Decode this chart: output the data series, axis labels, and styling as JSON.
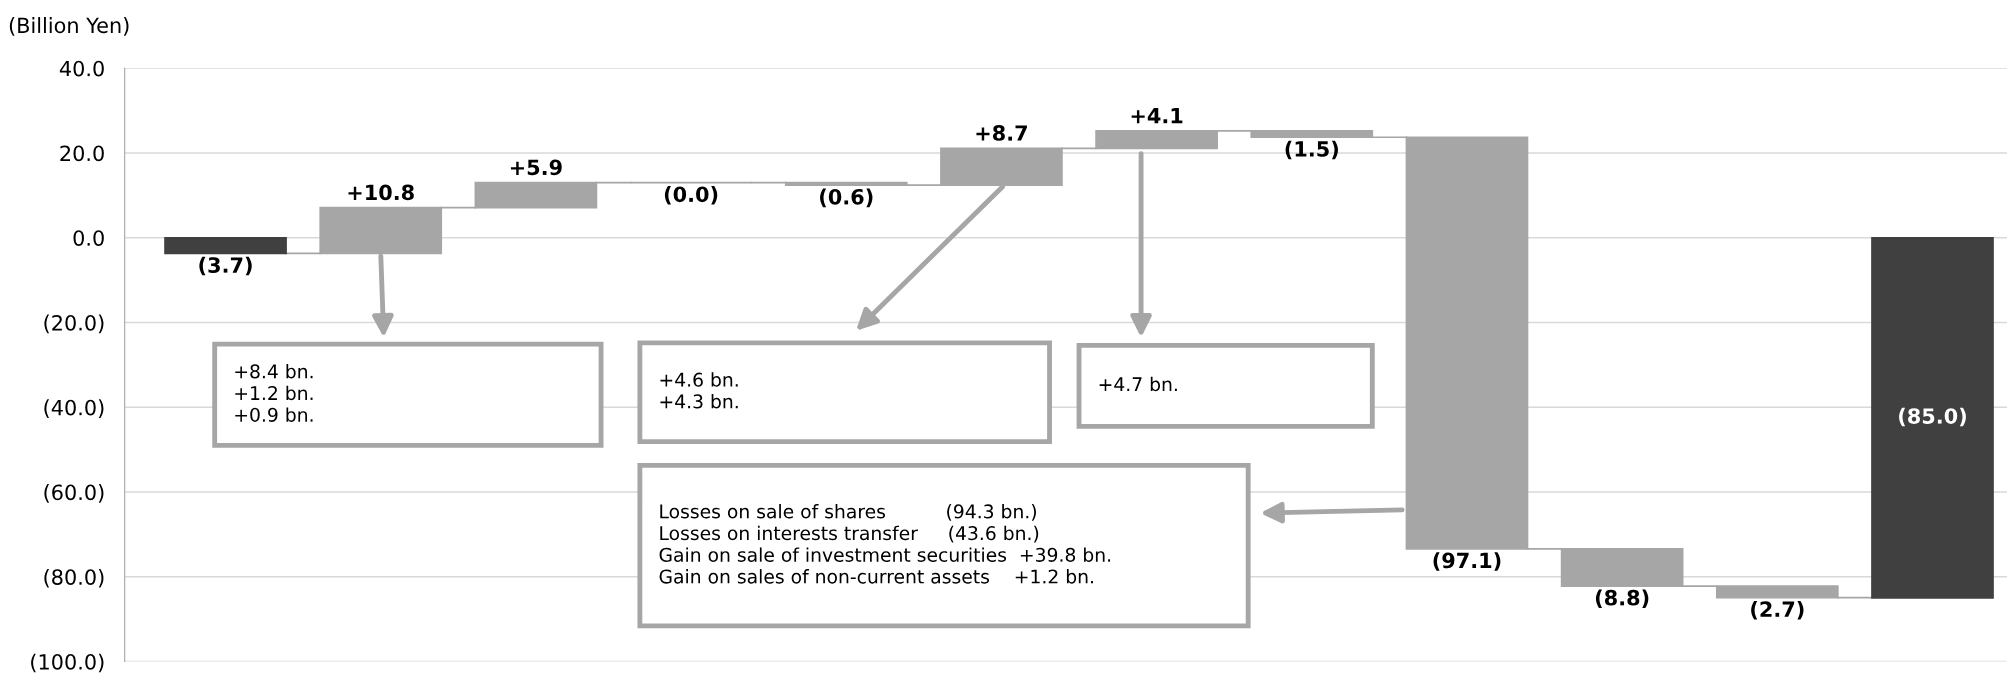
{
  "chart_data": {
    "type": "bar",
    "ylabel": "(Billion Yen)",
    "categories": [
      null,
      null,
      null,
      null,
      null,
      null,
      null,
      null,
      null,
      null,
      null,
      null
    ],
    "values": [
      -3.7,
      10.8,
      5.9,
      0.0,
      -0.6,
      8.7,
      4.1,
      -1.5,
      -97.1,
      -8.8,
      -2.7,
      -85.0
    ],
    "base": [
      0,
      -3.7,
      7.1,
      13.0,
      13.0,
      12.4,
      21.1,
      25.2,
      23.7,
      -73.4,
      -82.2,
      0
    ],
    "colors": [
      "#404040",
      "#a6a6a6",
      "#a6a6a6",
      "#a6a6a6",
      "#a6a6a6",
      "#a6a6a6",
      "#a6a6a6",
      "#a6a6a6",
      "#a6a6a6",
      "#a6a6a6",
      "#a6a6a6",
      "#404040"
    ],
    "value_labels": [
      "(3.7)",
      "+10.8",
      "+5.9",
      "(0.0)",
      "(0.6)",
      "+8.7",
      "+4.1",
      "(1.5)",
      "(97.1)",
      "(8.8)",
      "(2.7)",
      "(85.0)"
    ],
    "ylim": [
      -100,
      40
    ],
    "yticks": [
      {
        "value": 40,
        "label": "40.0"
      },
      {
        "value": 20,
        "label": "20.0"
      },
      {
        "value": 0,
        "label": "0.0"
      },
      {
        "value": -20,
        "label": "(20.0)"
      },
      {
        "value": -40,
        "label": "(40.0)"
      },
      {
        "value": -60,
        "label": "(60.0)"
      },
      {
        "value": -80,
        "label": "(80.0)"
      },
      {
        "value": -100,
        "label": "(100.0)"
      }
    ],
    "grid": "y",
    "annotations": [
      "+8.4 bn.\n+1.2 bn.\n+0.9 bn.",
      "+4.6 bn.\n+4.3 bn.",
      "+4.7 bn.",
      "Losses on sale of shares          (94.3 bn.)\nLosses on interests transfer     (43.6 bn.)\nGain on sale of investment securities  +39.8 bn.\nGain on sales of non-current assets    +1.2 bn."
    ]
  }
}
